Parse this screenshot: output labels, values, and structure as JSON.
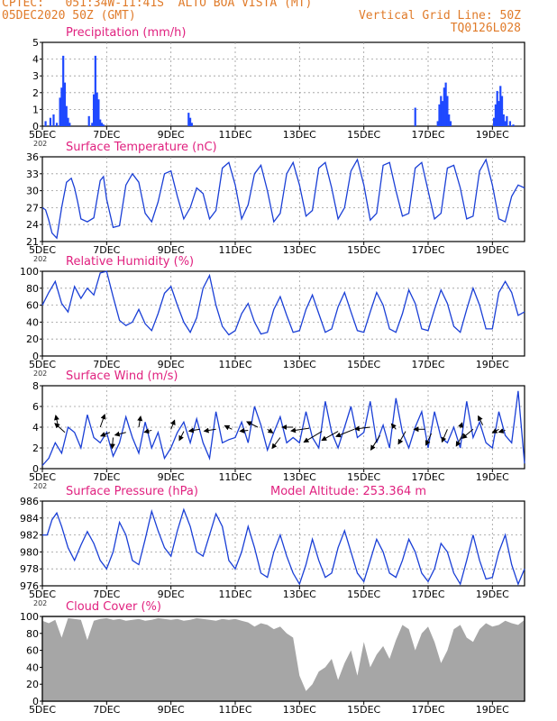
{
  "header": {
    "line1_left": "CPTEC:   051:34W-11:41S  ALTO BOA VISTA (MT)",
    "line2_left": "05DEC2020 50Z (GMT)",
    "line2_right": "Vertical Grid Line: 50Z",
    "line3_right": "TQ0126L028"
  },
  "x_axis": {
    "ticks": [
      {
        "day": 0,
        "label": "5DEC"
      },
      {
        "day": 2,
        "label": "7DEC"
      },
      {
        "day": 4,
        "label": "9DEC"
      },
      {
        "day": 6,
        "label": "11DEC"
      },
      {
        "day": 8,
        "label": "13DEC"
      },
      {
        "day": 10,
        "label": "15DEC"
      },
      {
        "day": 12,
        "label": "17DEC"
      },
      {
        "day": 14,
        "label": "19DEC"
      }
    ],
    "fragment_label": "202",
    "range": [
      0,
      15
    ]
  },
  "colors": {
    "line": "#1a3fd6",
    "bar": "#1f49ff",
    "cloud": "#a6a6a6",
    "title": "#e0217f",
    "header": "#e07b2a",
    "grid": "#9a9a9a"
  },
  "chart_data": [
    {
      "id": "precip",
      "type": "bar",
      "title": "Precipitation (mm/h)",
      "ylim": [
        0,
        5
      ],
      "yticks": [
        0,
        1,
        2,
        3,
        4,
        5
      ],
      "grid": true,
      "x": [
        0.1,
        0.25,
        0.35,
        0.45,
        0.55,
        0.6,
        0.65,
        0.7,
        0.75,
        0.8,
        0.85,
        1.45,
        1.55,
        1.6,
        1.65,
        1.7,
        1.75,
        1.8,
        1.85,
        1.9,
        4.55,
        4.6,
        4.65,
        11.6,
        12.3,
        12.35,
        12.4,
        12.45,
        12.5,
        12.55,
        12.6,
        12.65,
        12.7,
        14.05,
        14.1,
        14.15,
        14.2,
        14.25,
        14.3,
        14.35,
        14.4,
        14.45,
        14.55,
        14.65
      ],
      "values": [
        0.3,
        0.5,
        0.7,
        0.2,
        1.7,
        2.3,
        4.2,
        2.6,
        1.2,
        0.5,
        0.2,
        0.6,
        0.2,
        1.9,
        4.2,
        2.0,
        1.6,
        0.4,
        0.2,
        0.1,
        0.8,
        0.5,
        0.2,
        1.1,
        0.3,
        1.3,
        1.8,
        1.5,
        2.3,
        2.6,
        1.8,
        0.7,
        0.3,
        0.5,
        1.3,
        2.1,
        1.5,
        2.4,
        1.8,
        0.7,
        0.3,
        0.6,
        0.3,
        0.1
      ]
    },
    {
      "id": "temp",
      "type": "line",
      "title": "Surface Temperature (nC)",
      "ylim": [
        21,
        36
      ],
      "yticks": [
        21,
        24,
        27,
        30,
        33,
        36
      ],
      "grid": true,
      "x": [
        0,
        0.1,
        0.2,
        0.3,
        0.45,
        0.6,
        0.75,
        0.9,
        1.0,
        1.1,
        1.2,
        1.4,
        1.6,
        1.8,
        1.9,
        2.0,
        2.2,
        2.4,
        2.6,
        2.8,
        3.0,
        3.2,
        3.4,
        3.6,
        3.8,
        4.0,
        4.2,
        4.4,
        4.6,
        4.8,
        5.0,
        5.2,
        5.4,
        5.6,
        5.8,
        6.0,
        6.2,
        6.4,
        6.6,
        6.8,
        7.0,
        7.2,
        7.4,
        7.6,
        7.8,
        8.0,
        8.2,
        8.4,
        8.6,
        8.8,
        9.0,
        9.2,
        9.4,
        9.6,
        9.8,
        10.0,
        10.2,
        10.4,
        10.6,
        10.8,
        11.0,
        11.2,
        11.4,
        11.6,
        11.8,
        12.0,
        12.2,
        12.4,
        12.6,
        12.8,
        13.0,
        13.2,
        13.4,
        13.6,
        13.8,
        14.0,
        14.2,
        14.4,
        14.6,
        14.8,
        15.0
      ],
      "values": [
        27,
        26.6,
        24.8,
        22.5,
        21.6,
        27.0,
        31.5,
        32.2,
        30.5,
        28.0,
        25.0,
        24.5,
        25.2,
        31.8,
        32.5,
        28.5,
        23.5,
        23.8,
        31.0,
        33.0,
        31.5,
        26.0,
        24.5,
        28.0,
        33.0,
        33.5,
        29.0,
        25.0,
        27.0,
        30.5,
        29.5,
        25.0,
        26.5,
        34.0,
        35.0,
        31.0,
        25.0,
        27.5,
        33.0,
        34.5,
        30.0,
        24.5,
        26.0,
        33.0,
        35.0,
        31.0,
        25.5,
        26.5,
        34.0,
        35.0,
        30.5,
        25.0,
        27.0,
        33.5,
        35.5,
        31.0,
        24.8,
        26.0,
        34.5,
        35.0,
        30.0,
        25.5,
        26.0,
        34.0,
        35.0,
        30.0,
        25.0,
        26.0,
        34.0,
        34.5,
        30.5,
        25.0,
        25.5,
        33.5,
        35.5,
        31.0,
        25.0,
        24.5,
        29.0,
        31.0,
        30.5
      ]
    },
    {
      "id": "rh",
      "type": "line",
      "title": "Relative Humidity (%)",
      "ylim": [
        0,
        100
      ],
      "yticks": [
        0,
        20,
        40,
        60,
        80,
        100
      ],
      "grid": true,
      "x": [
        0,
        0.2,
        0.4,
        0.6,
        0.8,
        1.0,
        1.2,
        1.4,
        1.6,
        1.8,
        2.0,
        2.2,
        2.4,
        2.6,
        2.8,
        3.0,
        3.2,
        3.4,
        3.6,
        3.8,
        4.0,
        4.2,
        4.4,
        4.6,
        4.8,
        5.0,
        5.2,
        5.4,
        5.6,
        5.8,
        6.0,
        6.2,
        6.4,
        6.6,
        6.8,
        7.0,
        7.2,
        7.4,
        7.6,
        7.8,
        8.0,
        8.2,
        8.4,
        8.6,
        8.8,
        9.0,
        9.2,
        9.4,
        9.6,
        9.8,
        10.0,
        10.2,
        10.4,
        10.6,
        10.8,
        11.0,
        11.2,
        11.4,
        11.6,
        11.8,
        12.0,
        12.2,
        12.4,
        12.6,
        12.8,
        13.0,
        13.2,
        13.4,
        13.6,
        13.8,
        14.0,
        14.2,
        14.4,
        14.6,
        14.8,
        15.0
      ],
      "values": [
        60,
        75,
        88,
        62,
        52,
        82,
        68,
        80,
        72,
        98,
        100,
        70,
        42,
        36,
        40,
        55,
        38,
        30,
        50,
        74,
        82,
        60,
        40,
        28,
        45,
        80,
        95,
        60,
        35,
        25,
        30,
        50,
        62,
        40,
        26,
        28,
        55,
        70,
        48,
        28,
        30,
        55,
        72,
        50,
        28,
        32,
        58,
        75,
        52,
        30,
        28,
        52,
        75,
        60,
        32,
        28,
        50,
        78,
        62,
        32,
        30,
        55,
        78,
        62,
        35,
        28,
        55,
        80,
        60,
        32,
        32,
        75,
        88,
        75,
        48,
        52
      ]
    },
    {
      "id": "wind",
      "type": "line",
      "title": "Surface Wind (m/s)",
      "ylim": [
        0,
        8
      ],
      "yticks": [
        0,
        2,
        4,
        6,
        8
      ],
      "grid": true,
      "x": [
        0,
        0.2,
        0.4,
        0.6,
        0.8,
        1.0,
        1.2,
        1.4,
        1.6,
        1.8,
        2.0,
        2.2,
        2.4,
        2.6,
        2.8,
        3.0,
        3.2,
        3.4,
        3.6,
        3.8,
        4.0,
        4.2,
        4.4,
        4.6,
        4.8,
        5.0,
        5.2,
        5.4,
        5.6,
        5.8,
        6.0,
        6.2,
        6.4,
        6.6,
        6.8,
        7.0,
        7.2,
        7.4,
        7.6,
        7.8,
        8.0,
        8.2,
        8.4,
        8.6,
        8.8,
        9.0,
        9.2,
        9.4,
        9.6,
        9.8,
        10.0,
        10.2,
        10.4,
        10.6,
        10.8,
        11.0,
        11.2,
        11.4,
        11.6,
        11.8,
        12.0,
        12.2,
        12.4,
        12.6,
        12.8,
        13.0,
        13.2,
        13.4,
        13.6,
        13.8,
        14.0,
        14.2,
        14.4,
        14.6,
        14.8,
        15.0
      ],
      "values": [
        0.3,
        1.0,
        2.5,
        1.5,
        4.0,
        3.5,
        2.0,
        5.2,
        3.0,
        2.5,
        3.5,
        1.2,
        2.5,
        5.0,
        3.0,
        1.5,
        4.5,
        2.0,
        3.5,
        1.0,
        2.0,
        3.5,
        4.5,
        2.5,
        4.8,
        2.5,
        1.0,
        5.5,
        2.5,
        2.8,
        3.0,
        4.5,
        2.5,
        6.0,
        4.2,
        1.8,
        3.5,
        5.0,
        2.5,
        3.0,
        2.5,
        5.5,
        3.0,
        2.0,
        6.5,
        3.5,
        2.0,
        4.0,
        6.0,
        3.0,
        3.5,
        6.5,
        2.5,
        4.2,
        2.0,
        6.8,
        3.5,
        2.0,
        4.0,
        5.5,
        2.0,
        5.5,
        3.0,
        2.5,
        4.0,
        2.0,
        6.5,
        3.0,
        4.5,
        2.5,
        2.0,
        5.5,
        3.2,
        2.5,
        7.5,
        0.5
      ],
      "barbs": [
        {
          "x": 0.5,
          "y": 4.0,
          "dx": -3,
          "dy": -13
        },
        {
          "x": 0.7,
          "y": 3.5,
          "dx": -11,
          "dy": -10
        },
        {
          "x": 1.8,
          "y": 4.0,
          "dx": 5,
          "dy": -14
        },
        {
          "x": 2.1,
          "y": 3.5,
          "dx": -10,
          "dy": 4
        },
        {
          "x": 2.2,
          "y": 3.0,
          "dx": -1,
          "dy": 12
        },
        {
          "x": 2.6,
          "y": 3.5,
          "dx": -12,
          "dy": 3
        },
        {
          "x": 3.0,
          "y": 4.0,
          "dx": 2,
          "dy": -12
        },
        {
          "x": 3.4,
          "y": 3.7,
          "dx": -8,
          "dy": 2
        },
        {
          "x": 4.0,
          "y": 3.8,
          "dx": 4,
          "dy": -10
        },
        {
          "x": 4.4,
          "y": 3.6,
          "dx": -5,
          "dy": 10
        },
        {
          "x": 4.9,
          "y": 3.8,
          "dx": -12,
          "dy": 2
        },
        {
          "x": 5.4,
          "y": 3.8,
          "dx": -13,
          "dy": 2
        },
        {
          "x": 5.9,
          "y": 3.8,
          "dx": -8,
          "dy": -4
        },
        {
          "x": 6.4,
          "y": 3.7,
          "dx": -9,
          "dy": 1
        },
        {
          "x": 6.7,
          "y": 4.0,
          "dx": -12,
          "dy": -6
        },
        {
          "x": 7.0,
          "y": 3.8,
          "dx": 6,
          "dy": 4
        },
        {
          "x": 7.4,
          "y": 3.0,
          "dx": -9,
          "dy": 12
        },
        {
          "x": 7.8,
          "y": 4.0,
          "dx": -12,
          "dy": 0
        },
        {
          "x": 8.3,
          "y": 3.9,
          "dx": -20,
          "dy": 3
        },
        {
          "x": 8.7,
          "y": 3.6,
          "dx": -20,
          "dy": 12
        },
        {
          "x": 9.2,
          "y": 3.6,
          "dx": -18,
          "dy": 10
        },
        {
          "x": 9.7,
          "y": 3.8,
          "dx": -20,
          "dy": 8
        },
        {
          "x": 10.2,
          "y": 4.0,
          "dx": -17,
          "dy": 2
        },
        {
          "x": 10.5,
          "y": 3.2,
          "dx": -10,
          "dy": 16
        },
        {
          "x": 11.0,
          "y": 3.8,
          "dx": -5,
          "dy": -6
        },
        {
          "x": 11.3,
          "y": 3.6,
          "dx": -8,
          "dy": 14
        },
        {
          "x": 11.9,
          "y": 3.8,
          "dx": -12,
          "dy": 0
        },
        {
          "x": 12.1,
          "y": 3.4,
          "dx": -6,
          "dy": 13
        },
        {
          "x": 12.6,
          "y": 3.8,
          "dx": -6,
          "dy": 14
        },
        {
          "x": 13.0,
          "y": 3.9,
          "dx": 2,
          "dy": -6
        },
        {
          "x": 13.1,
          "y": 3.4,
          "dx": -8,
          "dy": 14
        },
        {
          "x": 13.4,
          "y": 3.8,
          "dx": -12,
          "dy": 10
        },
        {
          "x": 13.7,
          "y": 4.2,
          "dx": -5,
          "dy": -10
        },
        {
          "x": 14.2,
          "y": 3.8,
          "dx": -7,
          "dy": 4
        },
        {
          "x": 14.4,
          "y": 3.7,
          "dx": -7,
          "dy": 2
        }
      ]
    },
    {
      "id": "pressure",
      "type": "line",
      "title": "Surface Pressure (hPa)",
      "annotation": "Model Altitude: 253.364 m",
      "ylim": [
        976,
        986
      ],
      "yticks": [
        976,
        978,
        980,
        982,
        984,
        986
      ],
      "grid": true,
      "x": [
        0,
        0.15,
        0.3,
        0.45,
        0.6,
        0.8,
        1.0,
        1.2,
        1.4,
        1.6,
        1.8,
        2.0,
        2.2,
        2.4,
        2.6,
        2.8,
        3.0,
        3.2,
        3.4,
        3.6,
        3.8,
        4.0,
        4.2,
        4.4,
        4.6,
        4.8,
        5.0,
        5.2,
        5.4,
        5.6,
        5.8,
        6.0,
        6.2,
        6.4,
        6.6,
        6.8,
        7.0,
        7.2,
        7.4,
        7.6,
        7.8,
        8.0,
        8.2,
        8.4,
        8.6,
        8.8,
        9.0,
        9.2,
        9.4,
        9.6,
        9.8,
        10.0,
        10.2,
        10.4,
        10.6,
        10.8,
        11.0,
        11.2,
        11.4,
        11.6,
        11.8,
        12.0,
        12.2,
        12.4,
        12.6,
        12.8,
        13.0,
        13.2,
        13.4,
        13.6,
        13.8,
        14.0,
        14.2,
        14.4,
        14.6,
        14.8,
        15.0
      ],
      "values": [
        982,
        982.0,
        983.8,
        984.6,
        983.0,
        980.5,
        979.0,
        980.8,
        982.4,
        981.0,
        979.0,
        978.0,
        980.0,
        983.5,
        982.0,
        979.0,
        978.5,
        981.5,
        984.8,
        982.5,
        980.5,
        979.5,
        982.5,
        985.0,
        983.0,
        980.0,
        979.5,
        982.0,
        984.5,
        983.0,
        979.0,
        978.0,
        980.0,
        983.0,
        980.5,
        977.5,
        977.0,
        980.0,
        982.0,
        979.5,
        977.5,
        976.2,
        978.5,
        981.5,
        979.0,
        977.0,
        977.5,
        980.5,
        982.5,
        980.0,
        977.5,
        976.5,
        979.0,
        981.5,
        980.0,
        977.5,
        977.0,
        979.0,
        981.5,
        980.0,
        977.5,
        976.5,
        978.0,
        981.0,
        980.0,
        977.5,
        976.2,
        979.0,
        982.0,
        979.0,
        976.8,
        977.0,
        980.0,
        982.0,
        978.5,
        976.2,
        978.0
      ]
    },
    {
      "id": "cloud",
      "type": "area",
      "title": "Cloud Cover (%)",
      "ylim": [
        0,
        100
      ],
      "yticks": [
        0,
        20,
        40,
        60,
        80,
        100
      ],
      "grid": false,
      "x": [
        0,
        0.2,
        0.4,
        0.6,
        0.8,
        1.0,
        1.2,
        1.4,
        1.6,
        1.8,
        2.0,
        2.2,
        2.4,
        2.6,
        2.8,
        3.0,
        3.2,
        3.4,
        3.6,
        3.8,
        4.0,
        4.2,
        4.4,
        4.6,
        4.8,
        5.0,
        5.2,
        5.4,
        5.6,
        5.8,
        6.0,
        6.2,
        6.4,
        6.6,
        6.8,
        7.0,
        7.2,
        7.4,
        7.6,
        7.8,
        8.0,
        8.2,
        8.4,
        8.6,
        8.8,
        9.0,
        9.2,
        9.4,
        9.6,
        9.8,
        10.0,
        10.2,
        10.4,
        10.6,
        10.8,
        11.0,
        11.2,
        11.4,
        11.6,
        11.8,
        12.0,
        12.2,
        12.4,
        12.6,
        12.8,
        13.0,
        13.2,
        13.4,
        13.6,
        13.8,
        14.0,
        14.2,
        14.4,
        14.6,
        14.8,
        15.0
      ],
      "values": [
        95,
        92,
        96,
        75,
        98,
        97,
        96,
        72,
        95,
        97,
        98,
        96,
        97,
        95,
        96,
        97,
        95,
        96,
        98,
        97,
        96,
        97,
        95,
        96,
        98,
        97,
        96,
        95,
        97,
        96,
        97,
        95,
        93,
        88,
        92,
        90,
        85,
        88,
        80,
        75,
        30,
        12,
        20,
        35,
        40,
        50,
        25,
        45,
        60,
        30,
        70,
        40,
        55,
        65,
        50,
        72,
        90,
        85,
        60,
        80,
        88,
        70,
        45,
        60,
        85,
        90,
        75,
        70,
        85,
        92,
        88,
        90,
        95,
        92,
        90,
        96
      ]
    }
  ]
}
